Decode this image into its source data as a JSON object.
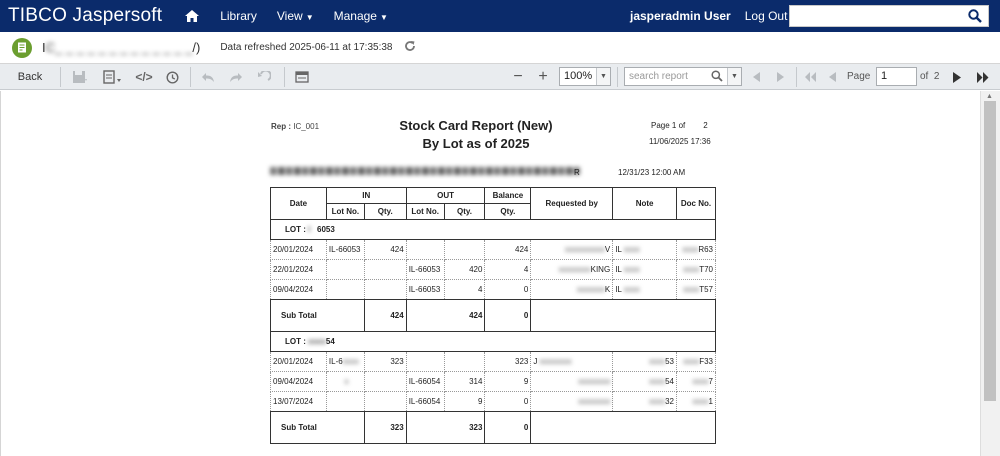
{
  "nav": {
    "logo": "TIBCO Jaspersoft",
    "library": "Library",
    "view": "View",
    "manage": "Manage",
    "user": "jasperadmin User",
    "logout": "Log Out"
  },
  "report_header": {
    "title_prefix": "I",
    "title_blurred": "C_ _ _ _ _ _ _ _ _ _ _ _ _",
    "title_suffix": "/)",
    "refreshed": "Data refreshed 2025-06-11 at 17:35:38"
  },
  "toolbar": {
    "back": "Back",
    "zoom": "100%",
    "search_placeholder": "search report",
    "page_label": "Page",
    "page_value": "1",
    "of_label": "of",
    "total_pages": "2"
  },
  "report": {
    "rep_label": "Rep :",
    "rep_id": "IC_001",
    "title": "Stock Card Report (New)",
    "subtitle": "By Lot as of 2025",
    "page_of": "Page 1 of",
    "page_total": "2",
    "printed": "11/06/2025 17:36",
    "filter_end": "R",
    "as_of": "12/31/23 12:00 AM",
    "headers": {
      "date": "Date",
      "in": "IN",
      "out": "OUT",
      "balance": "Balance",
      "requested_by": "Requested by",
      "note": "Note",
      "doc_no": "Doc No.",
      "lot_no": "Lot No.",
      "qty": "Qty."
    },
    "lots": [
      {
        "lot_label": "LOT :",
        "lot_visible": "6053",
        "rows": [
          {
            "date": "20/01/2024",
            "in_lot": "IL-66053",
            "in_qty": "424",
            "out_lot": "",
            "out_qty": "",
            "balance": "424",
            "req": "V",
            "note": "IL",
            "doc": "R63"
          },
          {
            "date": "22/01/2024",
            "in_lot": "",
            "in_qty": "",
            "out_lot": "IL-66053",
            "out_qty": "420",
            "balance": "4",
            "req": "KING",
            "note": "IL",
            "doc": "T70"
          },
          {
            "date": "09/04/2024",
            "in_lot": "",
            "in_qty": "",
            "out_lot": "IL-66053",
            "out_qty": "4",
            "balance": "0",
            "req": "K",
            "note": "IL",
            "doc": "T57"
          }
        ],
        "subtotal_label": "Sub Total",
        "sub_in": "424",
        "sub_out": "424",
        "sub_bal": "0"
      },
      {
        "lot_label": "LOT :",
        "lot_visible": "54",
        "rows": [
          {
            "date": "20/01/2024",
            "in_lot": "IL-6",
            "in_qty": "323",
            "out_lot": "",
            "out_qty": "",
            "balance": "323",
            "req": "J",
            "note": "53",
            "doc": "F33"
          },
          {
            "date": "09/04/2024",
            "in_lot": "",
            "in_qty": "",
            "out_lot": "IL-66054",
            "out_qty": "314",
            "balance": "9",
            "req": "",
            "note": "54",
            "doc": "7"
          },
          {
            "date": "13/07/2024",
            "in_lot": "",
            "in_qty": "",
            "out_lot": "IL-66054",
            "out_qty": "9",
            "balance": "0",
            "req": "",
            "note": "32",
            "doc": "1"
          }
        ],
        "subtotal_label": "Sub Total",
        "sub_in": "323",
        "sub_out": "323",
        "sub_bal": "0"
      }
    ]
  },
  "colors": {
    "nav_bg": "#0b2b6b",
    "toolbar_bg": "#e9ecef",
    "report_icon": "#6b9e2f"
  }
}
